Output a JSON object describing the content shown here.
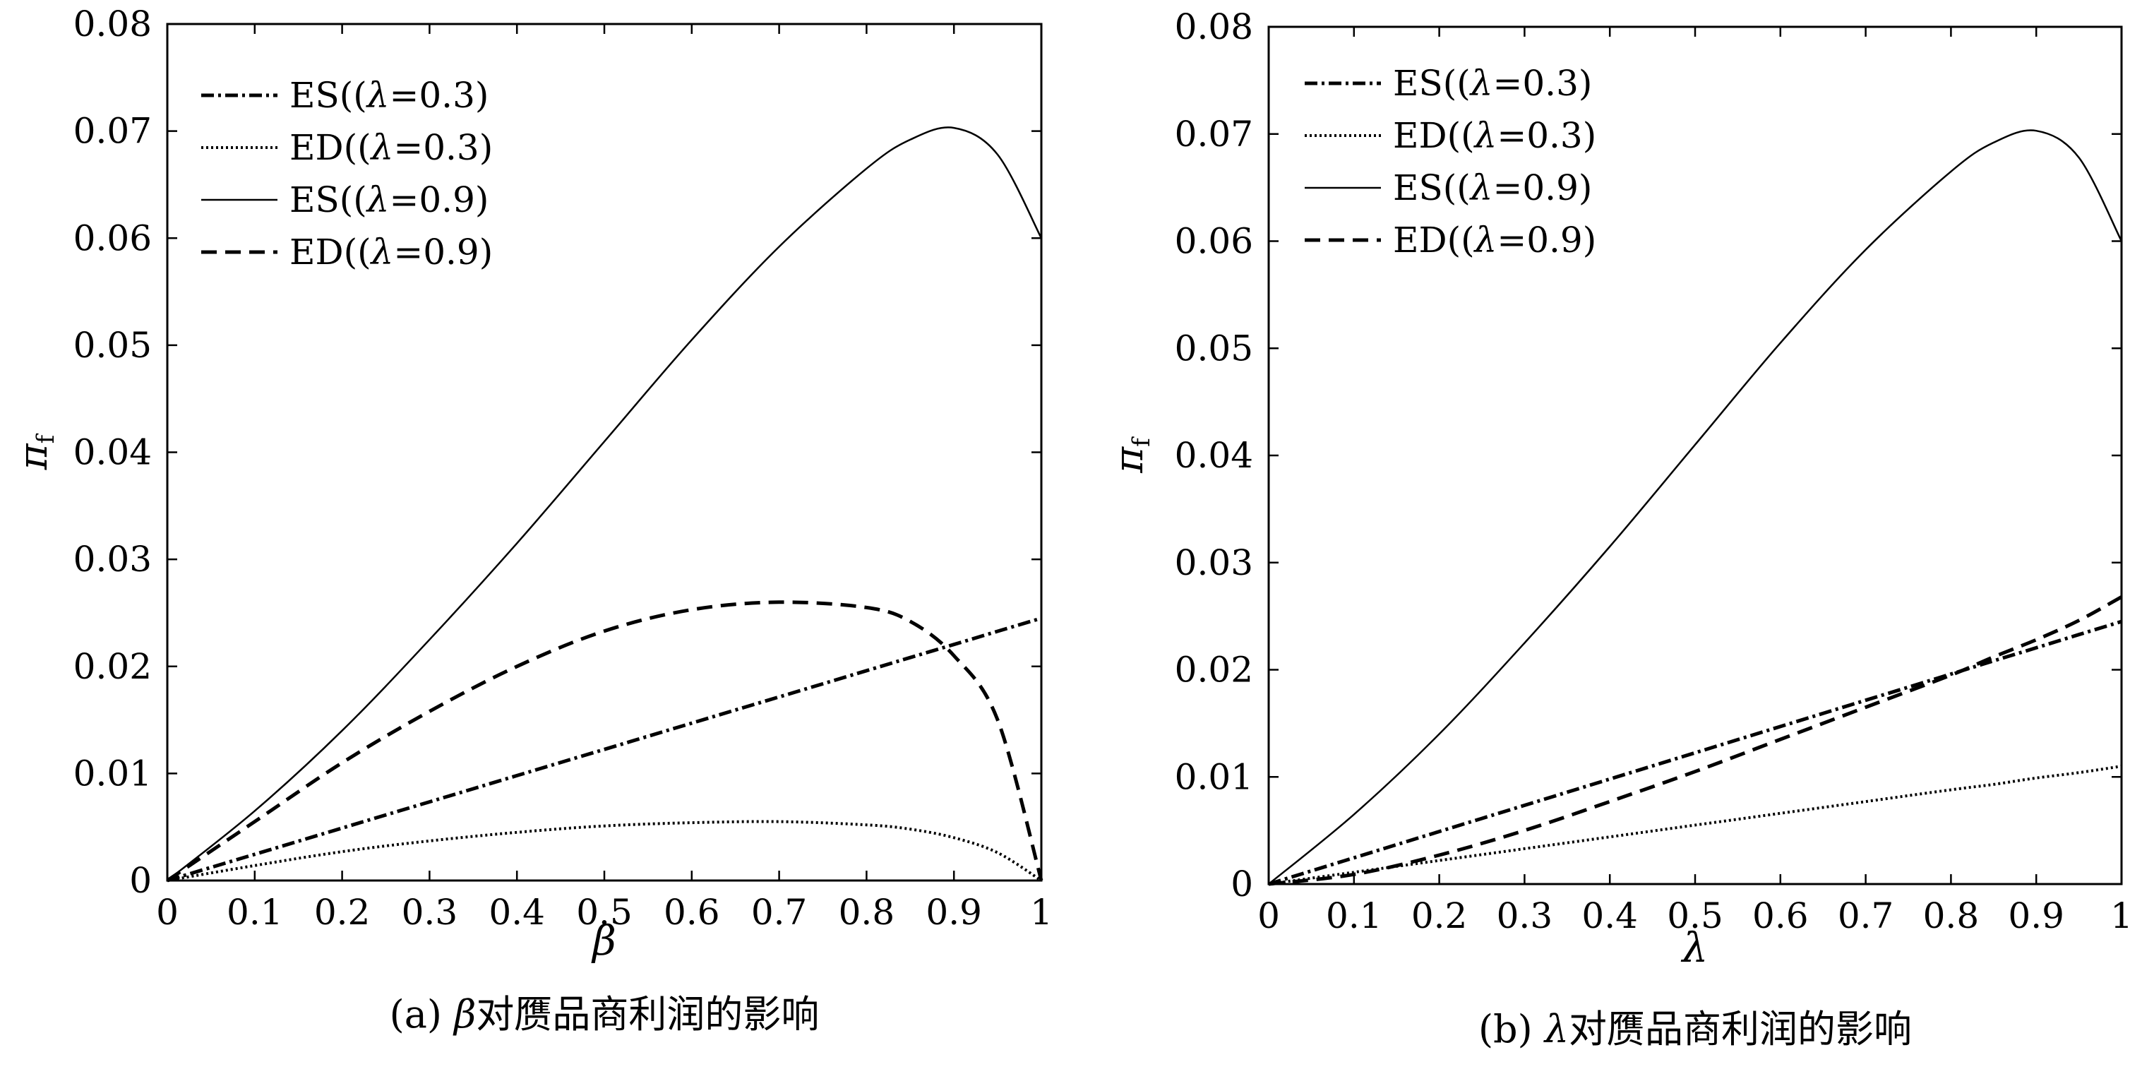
{
  "chart_data": [
    {
      "panel": "a",
      "type": "line",
      "caption_prefix": "(a)",
      "caption_symbol": "β",
      "caption_text": "对赝品商利润的影响",
      "xlabel": "β",
      "ylabel": "π",
      "ylabel_sub": "f",
      "xlim": [
        0,
        1
      ],
      "ylim": [
        0,
        0.08
      ],
      "xticks": [
        "0",
        "0.1",
        "0.2",
        "0.3",
        "0.4",
        "0.5",
        "0.6",
        "0.7",
        "0.8",
        "0.9",
        "1"
      ],
      "yticks": [
        "0",
        "0.01",
        "0.02",
        "0.03",
        "0.04",
        "0.05",
        "0.06",
        "0.07",
        "0.08"
      ],
      "grid": false,
      "legend_position": "top-left",
      "x": [
        0,
        0.1,
        0.2,
        0.3,
        0.4,
        0.5,
        0.6,
        0.7,
        0.8,
        0.85,
        0.9,
        0.95,
        1.0
      ],
      "series": [
        {
          "name": "ES((λ=0.3)",
          "style": "dashdot",
          "values": [
            0,
            0.00245,
            0.0049,
            0.00735,
            0.0098,
            0.01225,
            0.0147,
            0.01715,
            0.0196,
            0.02083,
            0.02205,
            0.02328,
            0.0245
          ]
        },
        {
          "name": "ED((λ=0.3)",
          "style": "dotted",
          "values": [
            0,
            0.0014,
            0.0027,
            0.0037,
            0.0045,
            0.0051,
            0.0054,
            0.0055,
            0.0052,
            0.0048,
            0.004,
            0.0026,
            0.0
          ]
        },
        {
          "name": "ES((λ=0.9)",
          "style": "solid",
          "values": [
            0,
            0.0065,
            0.014,
            0.0225,
            0.0315,
            0.041,
            0.0505,
            0.0592,
            0.0665,
            0.0692,
            0.0703,
            0.0678,
            0.06
          ]
        },
        {
          "name": "ED((λ=0.9)",
          "style": "dashed",
          "values": [
            0,
            0.0055,
            0.011,
            0.0158,
            0.02,
            0.0233,
            0.0253,
            0.026,
            0.0255,
            0.0242,
            0.021,
            0.015,
            0.0
          ]
        }
      ]
    },
    {
      "panel": "b",
      "type": "line",
      "caption_prefix": "(b)",
      "caption_symbol": "λ",
      "caption_text": "对赝品商利润的影响",
      "xlabel": "λ",
      "ylabel": "π",
      "ylabel_sub": "f",
      "xlim": [
        0,
        1
      ],
      "ylim": [
        0,
        0.08
      ],
      "xticks": [
        "0",
        "0.1",
        "0.2",
        "0.3",
        "0.4",
        "0.5",
        "0.6",
        "0.7",
        "0.8",
        "0.9",
        "1"
      ],
      "yticks": [
        "0",
        "0.01",
        "0.02",
        "0.03",
        "0.04",
        "0.05",
        "0.06",
        "0.07",
        "0.08"
      ],
      "grid": false,
      "legend_position": "top-left",
      "x": [
        0,
        0.1,
        0.2,
        0.3,
        0.4,
        0.5,
        0.6,
        0.7,
        0.8,
        0.85,
        0.9,
        0.95,
        1.0
      ],
      "series": [
        {
          "name": "ES((λ=0.3)",
          "style": "dashdot",
          "values": [
            0,
            0.00245,
            0.0049,
            0.00735,
            0.0098,
            0.01225,
            0.0147,
            0.01715,
            0.0196,
            0.02083,
            0.02205,
            0.02328,
            0.0245
          ]
        },
        {
          "name": "ED((λ=0.3)",
          "style": "dotted",
          "values": [
            0,
            0.0011,
            0.0022,
            0.0033,
            0.0044,
            0.0055,
            0.0066,
            0.0077,
            0.0088,
            0.0093,
            0.0099,
            0.0104,
            0.011
          ]
        },
        {
          "name": "ES((λ=0.9)",
          "style": "solid",
          "values": [
            0,
            0.0065,
            0.014,
            0.0225,
            0.0315,
            0.041,
            0.0505,
            0.0592,
            0.0665,
            0.0692,
            0.0703,
            0.0678,
            0.06
          ]
        },
        {
          "name": "ED((λ=0.9)",
          "style": "dashed",
          "values": [
            0,
            0.0009,
            0.0027,
            0.005,
            0.0077,
            0.0105,
            0.0135,
            0.0165,
            0.0195,
            0.0212,
            0.0228,
            0.0246,
            0.0268
          ]
        }
      ]
    }
  ]
}
